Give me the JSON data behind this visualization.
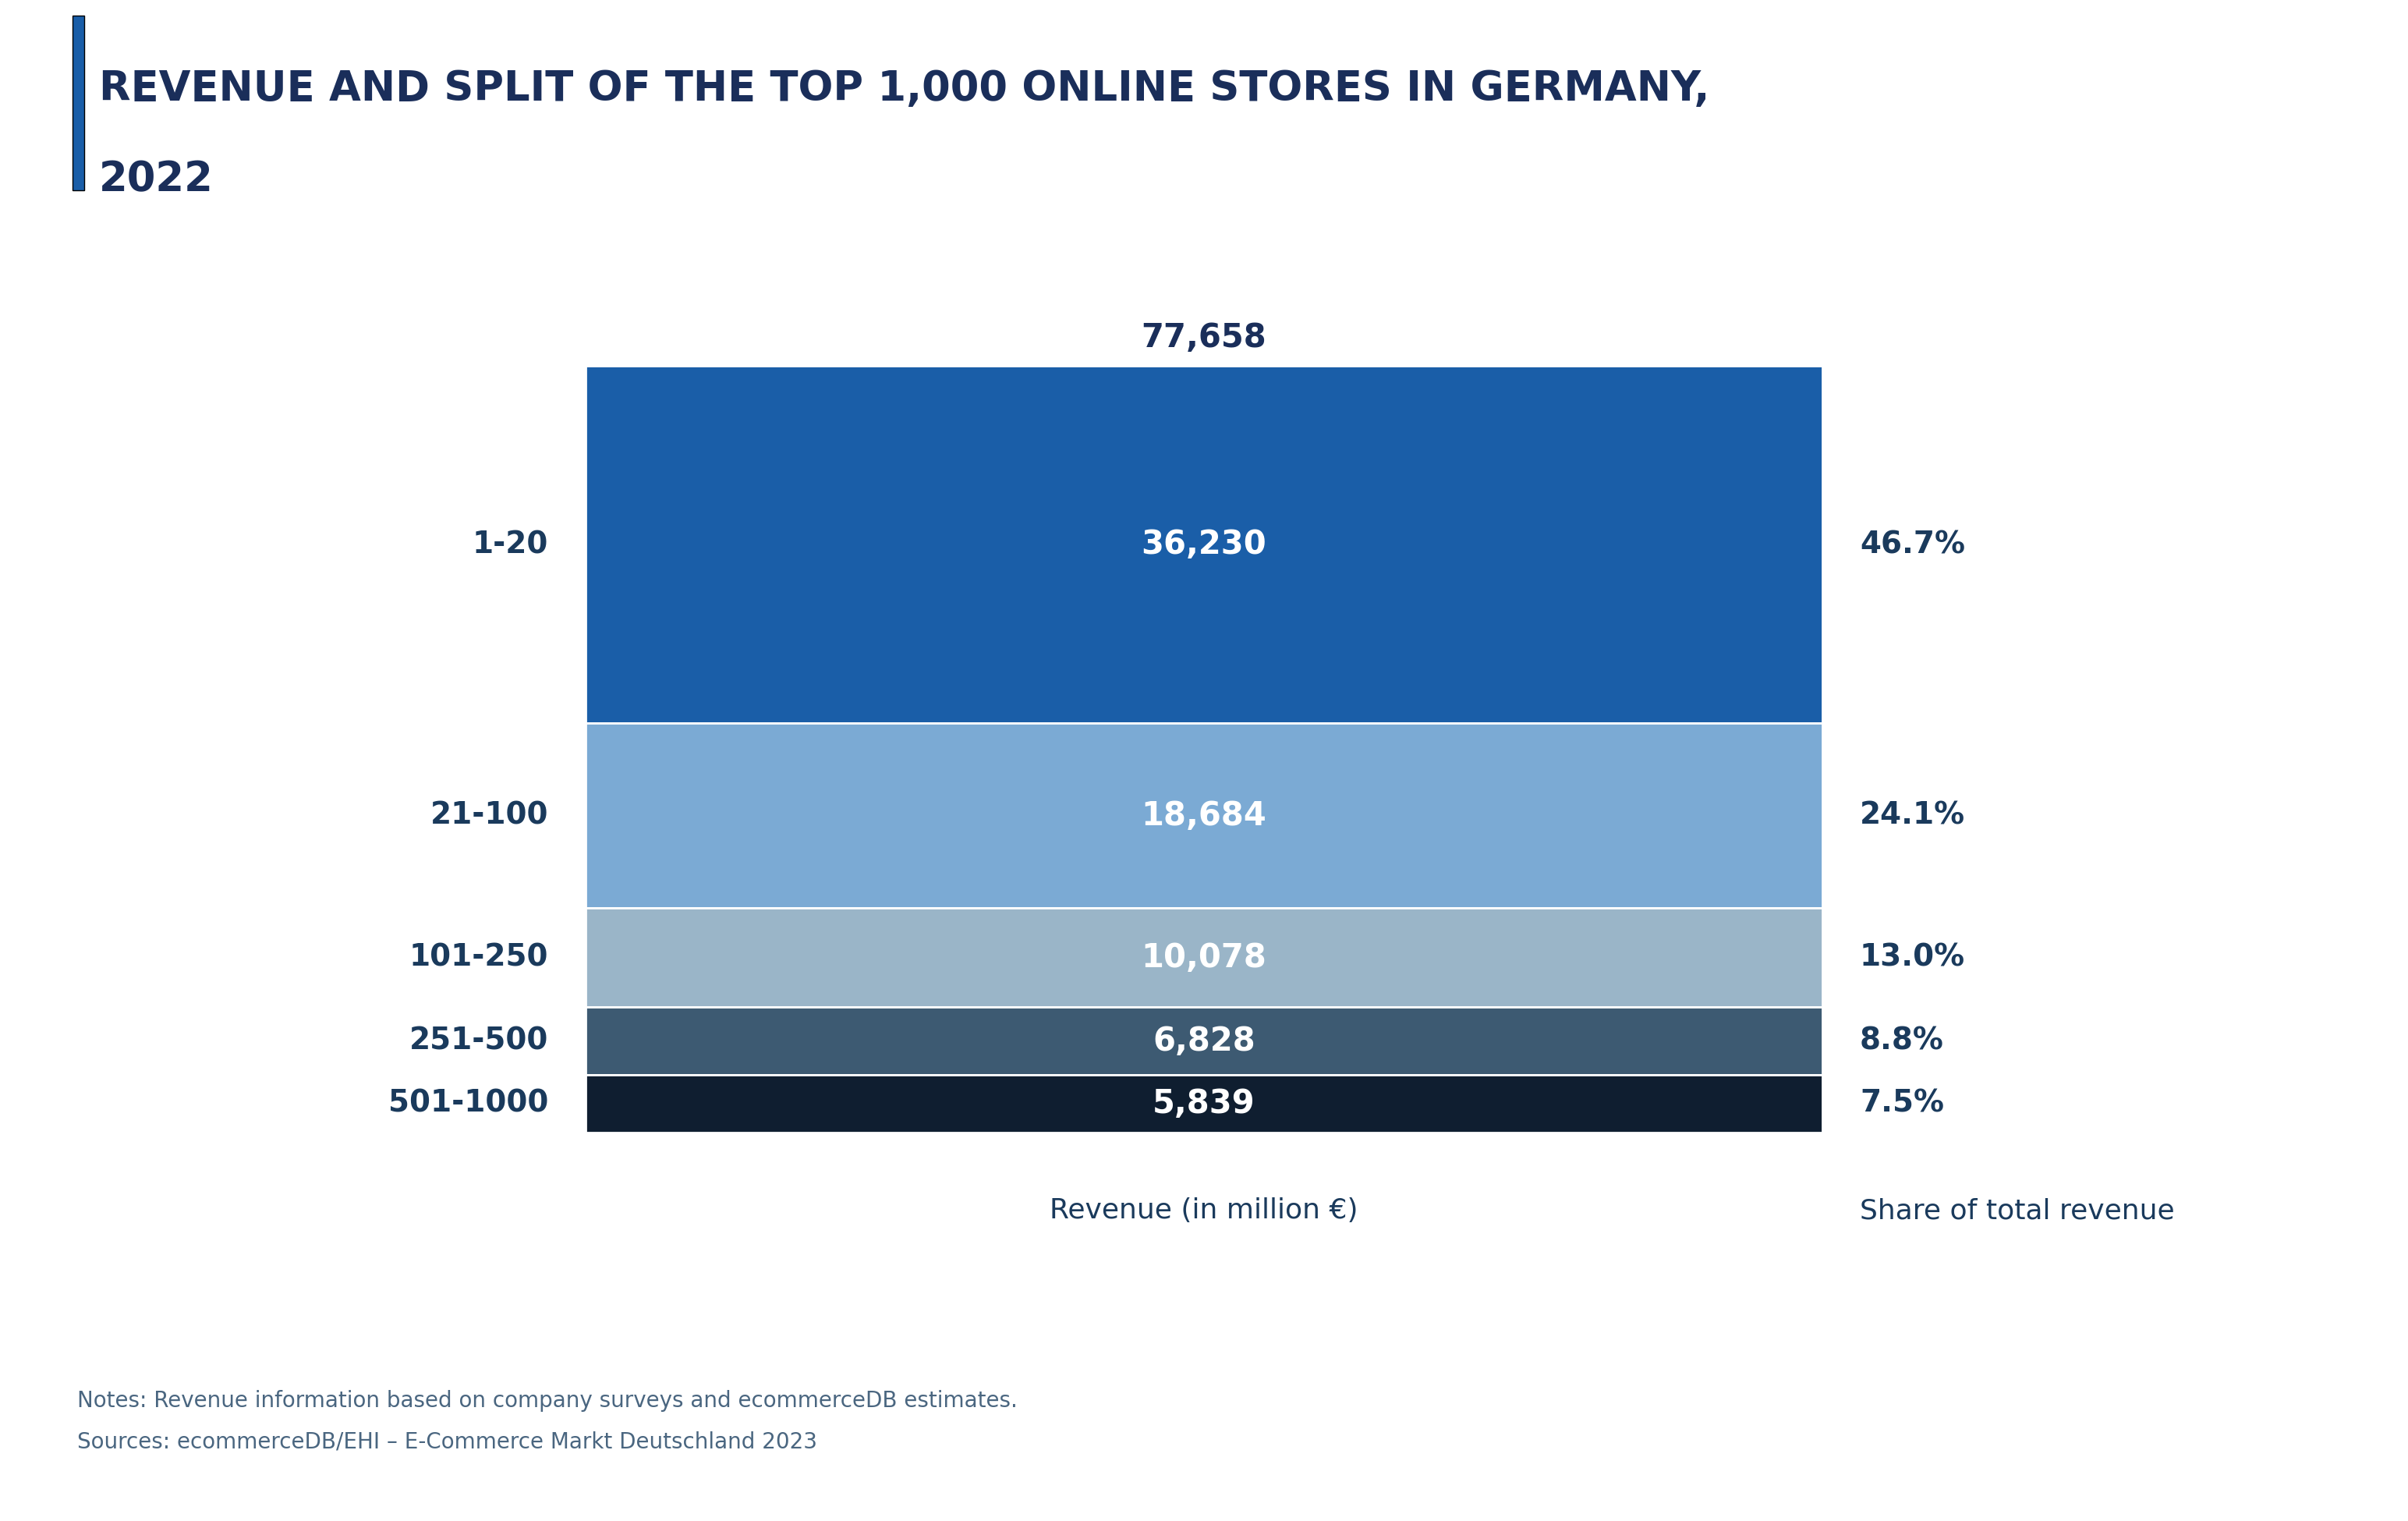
{
  "title_line1": "REVENUE AND SPLIT OF THE TOP 1,000 ONLINE STORES IN GERMANY,",
  "title_line2": "2022",
  "title_color": "#1a2e5a",
  "title_fontsize": 38,
  "accent_bar_color": "#1a5ea8",
  "categories": [
    "1-20",
    "21-100",
    "101-250",
    "251-500",
    "501-1000"
  ],
  "values": [
    36230,
    18684,
    10078,
    6828,
    5839
  ],
  "total_label": "77,658",
  "value_labels": [
    "36,230",
    "18,684",
    "10,078",
    "6,828",
    "5,839"
  ],
  "share_labels": [
    "46.7%",
    "24.1%",
    "13.0%",
    "8.8%",
    "7.5%"
  ],
  "bar_colors": [
    "#1a5ea8",
    "#7baad4",
    "#9ab5c8",
    "#3d5a72",
    "#0f1e30"
  ],
  "label_colors": [
    "white",
    "white",
    "white",
    "white",
    "white"
  ],
  "category_color": "#1a3a5c",
  "share_color": "#1a3a5c",
  "xlabel": "Revenue (in million €)",
  "xlabel_share": "Share of total revenue",
  "note_line1": "Notes: Revenue information based on company surveys and ecommerceDB estimates.",
  "note_line2": "Sources: ecommerceDB/EHI – E-Commerce Markt Deutschland 2023",
  "note_color": "#4a6680",
  "background_color": "#ffffff"
}
